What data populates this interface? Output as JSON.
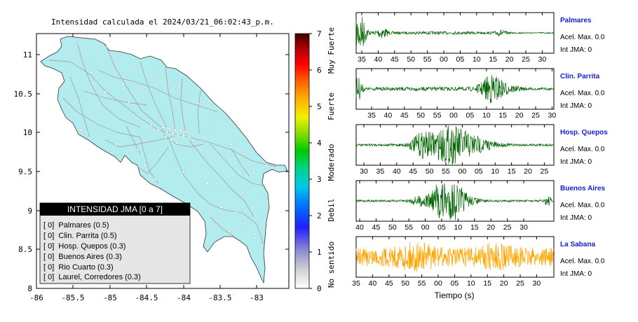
{
  "map_panel": {
    "title": "Intensidad calculada el 2024/03/21_06:02:43_p.m.",
    "x_ticks": [
      "-86",
      "-85.5",
      "-85",
      "-84.5",
      "-84",
      "-83.5",
      "-83"
    ],
    "y_ticks": [
      "11",
      "10.5",
      "10",
      "9.5",
      "9",
      "8.5",
      "8"
    ],
    "land_color": "#b3ecee"
  },
  "colorbar": {
    "ticks": [
      "0",
      "1",
      "2",
      "3",
      "4",
      "5",
      "6",
      "7"
    ],
    "category_labels": [
      "No sentido",
      "Debil",
      "Moderado",
      "Fuerte",
      "Muy Fuerte"
    ]
  },
  "legend": {
    "title": "INTENSIDAD JMA [0 a 7]",
    "rows": [
      "[ 0]  Palmares (0.5)",
      "[ 0]  Clin. Parrita (0.5)",
      "[ 0]  Hosp. Quepos (0.3)",
      "[ 0]  Buenos Aires (0.3)",
      "[ 0]  Rio Cuarto (0.3)",
      "[ 0]  Laurel, Corredores (0.3)"
    ]
  },
  "chart_data": [
    {
      "type": "line",
      "title": "Palmares",
      "x_ticks": [
        "35",
        "40",
        "45",
        "50",
        "55",
        "00",
        "05",
        "10",
        "15",
        "20",
        "25",
        "30"
      ],
      "accel_text": "Acel. Max. 0.0",
      "int_text": "Int JMA: 0",
      "color": "#006400"
    },
    {
      "type": "line",
      "title": "Clin. Parrita",
      "x_ticks": [
        "35",
        "40",
        "45",
        "50",
        "55",
        "00",
        "05",
        "10",
        "15",
        "20",
        "25",
        "30"
      ],
      "accel_text": "Acel. Max. 0.0",
      "int_text": "Int JMA: 0",
      "color": "#006400"
    },
    {
      "type": "line",
      "title": "Hosp. Quepos",
      "x_ticks": [
        "30",
        "35",
        "40",
        "45",
        "50",
        "55",
        "00",
        "05",
        "10",
        "15",
        "20",
        "25"
      ],
      "accel_text": "Acel. Max. 0.0",
      "int_text": "Int JMA: 0",
      "color": "#006400"
    },
    {
      "type": "line",
      "title": "Buenos Aires",
      "x_ticks": [
        "40",
        "45",
        "50",
        "55",
        "00",
        "05",
        "10",
        "15",
        "20",
        "25",
        "30"
      ],
      "accel_text": "Acel. Max. 0.0",
      "int_text": "Int JMA: 0",
      "color": "#006400"
    },
    {
      "type": "line",
      "title": "La Sabana",
      "x_ticks": [
        "35",
        "40",
        "45",
        "50",
        "55",
        "00",
        "05",
        "10",
        "15",
        "20",
        "25",
        "30"
      ],
      "accel_text": "Acel. Max. 0.0",
      "int_text": "Int JMA: 0",
      "color": "#ffa500",
      "xlabel": "Tiempo (s)"
    }
  ]
}
